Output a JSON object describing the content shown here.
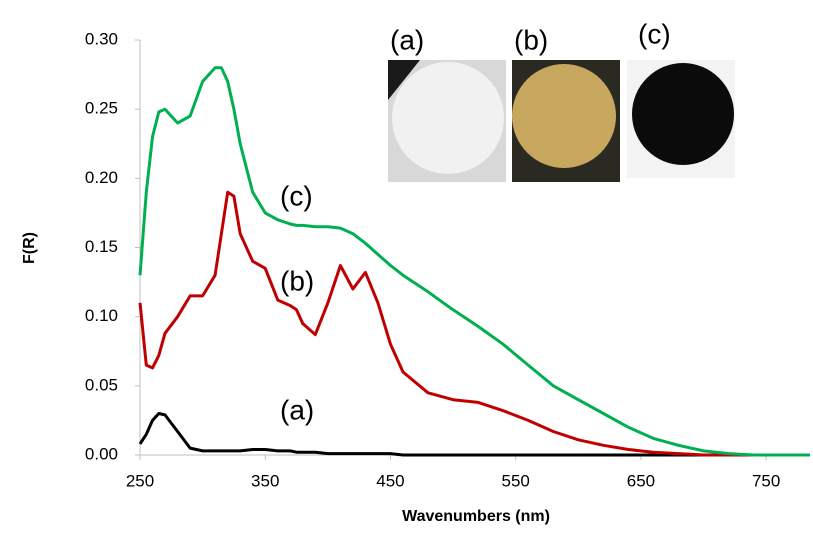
{
  "chart_data": {
    "type": "line",
    "xlabel": "Wavenumbers (nm)",
    "ylabel": "F(R)",
    "x": [
      250,
      255,
      260,
      265,
      270,
      280,
      290,
      300,
      310,
      315,
      320,
      325,
      330,
      340,
      350,
      360,
      370,
      375,
      380,
      390,
      400,
      410,
      420,
      430,
      440,
      450,
      460,
      480,
      500,
      520,
      540,
      560,
      580,
      600,
      620,
      640,
      660,
      680,
      700,
      720,
      740,
      760,
      785
    ],
    "series": [
      {
        "name": "(a)",
        "color": "#000000",
        "values": [
          0.008,
          0.015,
          0.025,
          0.03,
          0.029,
          0.017,
          0.005,
          0.003,
          0.003,
          0.003,
          0.003,
          0.003,
          0.003,
          0.004,
          0.004,
          0.003,
          0.003,
          0.002,
          0.002,
          0.002,
          0.001,
          0.001,
          0.001,
          0.001,
          0.001,
          0.001,
          0,
          0,
          0,
          0,
          0,
          0,
          0,
          0,
          0,
          0,
          0,
          0,
          0,
          0,
          0,
          0,
          0
        ]
      },
      {
        "name": "(b)",
        "color": "#c00000",
        "values": [
          0.11,
          0.065,
          0.063,
          0.072,
          0.088,
          0.1,
          0.115,
          0.115,
          0.13,
          0.16,
          0.19,
          0.187,
          0.16,
          0.14,
          0.135,
          0.112,
          0.108,
          0.105,
          0.095,
          0.087,
          0.11,
          0.137,
          0.12,
          0.132,
          0.11,
          0.08,
          0.06,
          0.045,
          0.04,
          0.038,
          0.032,
          0.025,
          0.017,
          0.011,
          0.007,
          0.004,
          0.002,
          0.001,
          0,
          0,
          0,
          0,
          0
        ]
      },
      {
        "name": "(c)",
        "color": "#00b050",
        "values": [
          0.13,
          0.19,
          0.23,
          0.248,
          0.25,
          0.24,
          0.245,
          0.27,
          0.28,
          0.28,
          0.27,
          0.25,
          0.225,
          0.19,
          0.175,
          0.17,
          0.167,
          0.166,
          0.166,
          0.165,
          0.165,
          0.164,
          0.16,
          0.153,
          0.145,
          0.137,
          0.13,
          0.118,
          0.105,
          0.093,
          0.08,
          0.065,
          0.05,
          0.04,
          0.03,
          0.02,
          0.012,
          0.007,
          0.003,
          0.001,
          0,
          0,
          0
        ]
      }
    ],
    "xlim": [
      250,
      785
    ],
    "xticks": [
      250,
      350,
      450,
      550,
      650,
      750
    ],
    "ylim": [
      0,
      0.3
    ],
    "yticks": [
      {
        "value": 0,
        "label": "0.00"
      },
      {
        "value": 0.05,
        "label": "0.05"
      },
      {
        "value": 0.1,
        "label": "0.10"
      },
      {
        "value": 0.15,
        "label": "0.15"
      },
      {
        "value": 0.2,
        "label": "0.20"
      },
      {
        "value": 0.25,
        "label": "0.25"
      },
      {
        "value": 0.3,
        "label": "0.30"
      }
    ],
    "inset_labels": [
      "(a)",
      "(b)",
      "(c)"
    ]
  }
}
